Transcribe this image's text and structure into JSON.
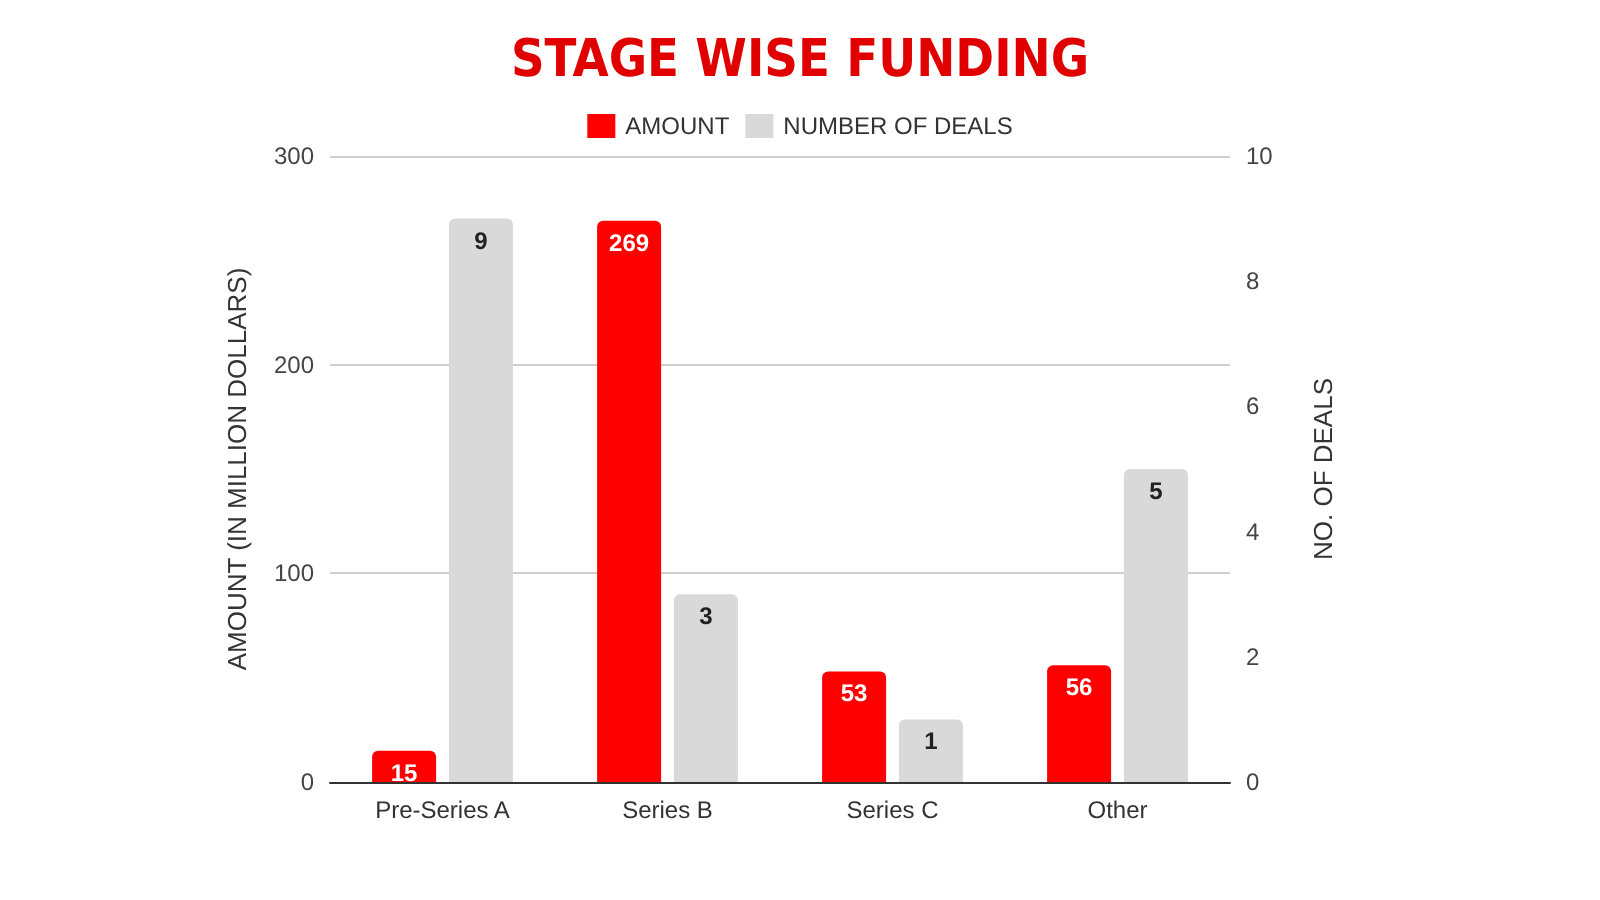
{
  "chart_data": {
    "type": "bar",
    "title": "STAGE WISE FUNDING",
    "ylabel": "AMOUNT (IN MILLION DOLLARS)",
    "y2label": "NO. OF DEALS",
    "categories": [
      "Pre-Series A",
      "Series B",
      "Series C",
      "Other"
    ],
    "series": [
      {
        "name": "AMOUNT",
        "color": "#ff0000",
        "values": [
          15,
          269,
          53,
          56
        ]
      },
      {
        "name": "NUMBER OF DEALS",
        "color": "#d9d9d9",
        "values": [
          9,
          3,
          1,
          5
        ],
        "axis": "y2"
      }
    ],
    "ylim": [
      0,
      300
    ],
    "yticks": [
      0,
      100,
      200,
      300
    ],
    "y2lim": [
      0,
      10
    ],
    "y2ticks": [
      0,
      2,
      4,
      6,
      8,
      10
    ],
    "grid": "y",
    "legend": "top",
    "data_labels": true
  }
}
